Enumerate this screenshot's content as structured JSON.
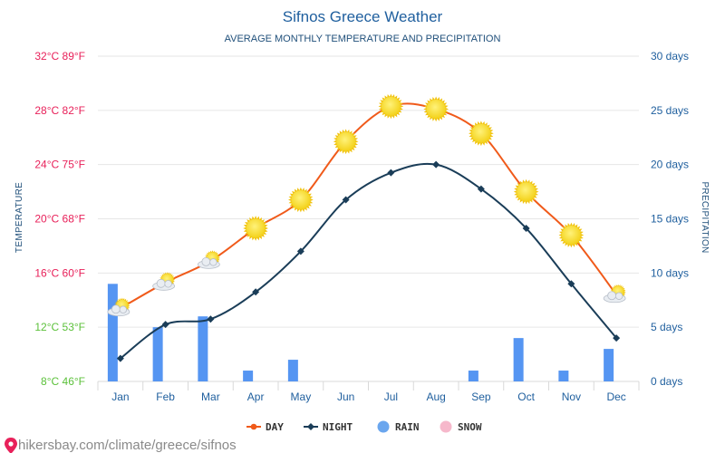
{
  "chart_data": {
    "type": "line",
    "title": "Sifnos Greece Weather",
    "subtitle": "AVERAGE MONTHLY TEMPERATURE AND PRECIPITATION",
    "ylabel_left": "TEMPERATURE",
    "ylabel_right": "PRECIPITATION",
    "categories": [
      "Jan",
      "Feb",
      "Mar",
      "Apr",
      "May",
      "Jun",
      "Jul",
      "Aug",
      "Sep",
      "Oct",
      "Nov",
      "Dec"
    ],
    "y_left_ticks": [
      "32°C 89°F",
      "28°C 82°F",
      "24°C 75°F",
      "20°C 68°F",
      "16°C 60°F",
      "12°C 53°F",
      "8°C 46°F"
    ],
    "y_left_tick_values": [
      32,
      28,
      24,
      20,
      16,
      12,
      8
    ],
    "y_left_tick_colors": [
      "#e8215a",
      "#e8215a",
      "#e8215a",
      "#e8215a",
      "#e8215a",
      "#5cc13b",
      "#5cc13b"
    ],
    "y_right_ticks": [
      "30 days",
      "25 days",
      "20 days",
      "15 days",
      "10 days",
      "5 days",
      "0 days"
    ],
    "ylim_left": [
      8,
      32
    ],
    "ylim_right": [
      0,
      30
    ],
    "grid": true,
    "legend_position": "bottom",
    "series": [
      {
        "name": "DAY",
        "kind": "line",
        "color": "#f05a1a",
        "values": [
          13.4,
          15.3,
          16.9,
          19.3,
          21.4,
          25.7,
          28.3,
          28.1,
          26.3,
          22.0,
          18.8,
          14.4
        ],
        "weather_icons": [
          "sun-cloud",
          "sun-cloud",
          "sun-cloud",
          "sun",
          "sun",
          "sun",
          "sun",
          "sun",
          "sun",
          "sun",
          "sun",
          "sun-cloud"
        ]
      },
      {
        "name": "NIGHT",
        "kind": "line",
        "color": "#1a3d58",
        "values": [
          9.7,
          12.2,
          12.6,
          14.6,
          17.6,
          21.4,
          23.4,
          24.0,
          22.2,
          19.3,
          15.2,
          11.2
        ]
      },
      {
        "name": "RAIN",
        "kind": "bar",
        "axis": "right",
        "color": "#5595f2",
        "values": [
          9,
          5,
          6,
          1,
          2,
          0,
          0,
          0,
          1,
          4,
          1,
          3
        ]
      },
      {
        "name": "SNOW",
        "kind": "bar",
        "axis": "right",
        "color": "#f6b8cb",
        "values": [
          0,
          0,
          0,
          0,
          0,
          0,
          0,
          0,
          0,
          0,
          0,
          0
        ]
      }
    ]
  },
  "legend": [
    {
      "label": "DAY",
      "color": "#f05a1a",
      "marker": "line-dot"
    },
    {
      "label": "NIGHT",
      "color": "#1a3d58",
      "marker": "line-diamond"
    },
    {
      "label": "RAIN",
      "color": "#6aa6ee",
      "marker": "circle"
    },
    {
      "label": "SNOW",
      "color": "#f6b8cb",
      "marker": "circle"
    }
  ],
  "source": {
    "text": "hikersbay.com/climate/greece/sifnos",
    "icon": "map-pin-icon",
    "color": "#e8215a"
  }
}
